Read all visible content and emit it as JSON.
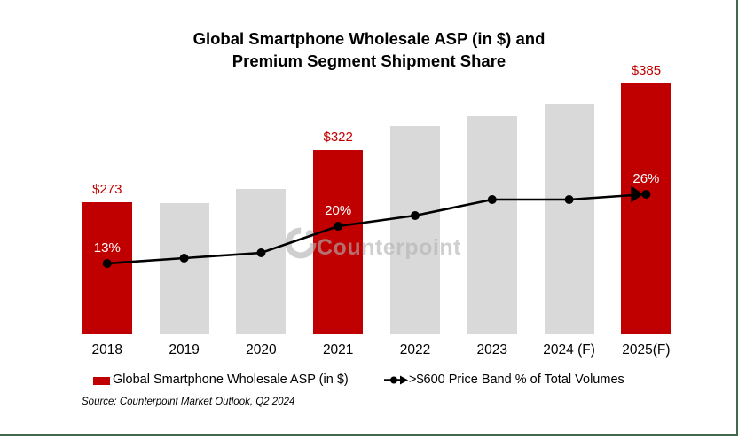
{
  "title": {
    "line1": "Global Smartphone Wholesale ASP (in $) and",
    "line2": "Premium Segment Shipment Share"
  },
  "chart_data": {
    "type": "bar",
    "combo": "bar-with-line-overlay",
    "title": "Global Smartphone Wholesale ASP (in $) and Premium Segment Shipment Share",
    "categories": [
      "2018",
      "2019",
      "2020",
      "2021",
      "2022",
      "2023",
      "2024 (F)",
      "2025(F)"
    ],
    "series": [
      {
        "name": "Global Smartphone Wholesale ASP (in $)",
        "type": "bar",
        "unit": "USD",
        "values": [
          273,
          272,
          285,
          322,
          345,
          354,
          366,
          385
        ],
        "value_labels": [
          "$273",
          null,
          null,
          "$322",
          null,
          null,
          null,
          "$385"
        ],
        "highlighted": [
          true,
          false,
          false,
          true,
          false,
          false,
          false,
          true
        ],
        "estimated": [
          false,
          true,
          true,
          false,
          true,
          true,
          true,
          false
        ]
      },
      {
        "name": ">$600 Price Band % of Total Volumes",
        "type": "line",
        "unit": "%",
        "values": [
          13,
          14,
          15,
          20,
          22,
          25,
          25,
          26
        ],
        "value_labels": [
          "13%",
          null,
          null,
          "20%",
          null,
          null,
          null,
          "26%"
        ],
        "marker": "circle",
        "end_marker": "arrow-right",
        "estimated": [
          false,
          true,
          true,
          false,
          true,
          true,
          true,
          false
        ]
      }
    ],
    "xlabel": "",
    "ylabel": "",
    "grid": false,
    "axes_hidden": true,
    "legend_position": "bottom"
  },
  "legend": {
    "item1_label": "Global Smartphone Wholesale ASP (in $)",
    "item2_label": ">$600 Price Band % of Total Volumes"
  },
  "watermark": {
    "text": "Counterpoint"
  },
  "source": "Source: Counterpoint Market Outlook, Q2 2024",
  "colors": {
    "bar_highlight_red": "#C00000",
    "bar_gray": "#D9D9D9",
    "line_black": "#000000",
    "asp_label_red": "#C00000",
    "pct_label_white": "#FFFFFF",
    "axis_gray": "#D9D9D9",
    "border_green": "#41694C",
    "watermark_gray": "rgba(178,178,178,0.62)"
  }
}
